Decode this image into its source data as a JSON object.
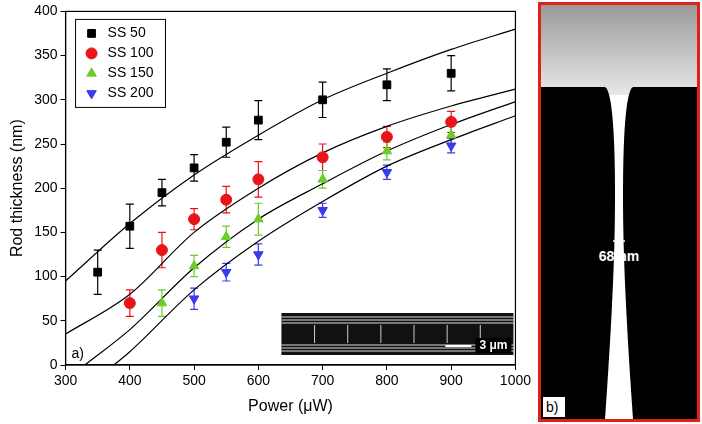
{
  "chart_data": {
    "type": "scatter",
    "x_label": "Power (μW)",
    "y_label": "Rod thickness (nm)",
    "xlim": [
      300,
      1000
    ],
    "xticks": [
      300,
      400,
      500,
      600,
      700,
      800,
      900,
      1000
    ],
    "ylim": [
      0,
      400
    ],
    "yticks": [
      0,
      50,
      100,
      150,
      200,
      250,
      300,
      350,
      400
    ],
    "grid": false,
    "legend": "upper left",
    "annotations": [
      "a)",
      "3 μm"
    ],
    "series": [
      {
        "name": "SS 50",
        "color": "#000000",
        "marker": "square",
        "x": [
          350,
          400,
          450,
          500,
          550,
          600,
          700,
          800,
          900
        ],
        "values": [
          105,
          157,
          195,
          223,
          252,
          277,
          300,
          317,
          330
        ],
        "errors": [
          25,
          25,
          15,
          15,
          17,
          22,
          20,
          18,
          20
        ],
        "fit": {
          "x": [
            300,
            400,
            500,
            600,
            700,
            800,
            900,
            1000
          ],
          "values": [
            95,
            160,
            215,
            260,
            300,
            330,
            357,
            380
          ]
        }
      },
      {
        "name": "SS 100",
        "color": "#e8141a",
        "marker": "circle",
        "x": [
          400,
          450,
          500,
          550,
          600,
          700,
          800,
          900
        ],
        "values": [
          70,
          130,
          165,
          187,
          210,
          235,
          258,
          275
        ],
        "errors": [
          15,
          20,
          12,
          15,
          20,
          15,
          12,
          12
        ],
        "fit": {
          "x": [
            300,
            400,
            500,
            600,
            700,
            800,
            900,
            1000
          ],
          "values": [
            35,
            80,
            150,
            200,
            240,
            270,
            293,
            312
          ]
        }
      },
      {
        "name": "SS 150",
        "color": "#6ccc2a",
        "marker": "triangle",
        "x": [
          450,
          500,
          550,
          600,
          700,
          800,
          900
        ],
        "values": [
          70,
          112,
          145,
          165,
          210,
          242,
          260
        ],
        "errors": [
          15,
          12,
          12,
          18,
          10,
          10,
          10
        ],
        "fit": {
          "x": [
            330,
            400,
            500,
            600,
            700,
            800,
            900,
            1000
          ],
          "values": [
            0,
            40,
            110,
            165,
            205,
            242,
            272,
            298
          ]
        }
      },
      {
        "name": "SS 200",
        "color": "#3a3aee",
        "marker": "triangle_down",
        "x": [
          500,
          550,
          600,
          700,
          800,
          900
        ],
        "values": [
          75,
          105,
          125,
          175,
          218,
          248
        ],
        "errors": [
          12,
          10,
          12,
          8,
          8,
          8
        ],
        "fit": {
          "x": [
            375,
            400,
            500,
            600,
            700,
            800,
            900,
            1000
          ],
          "values": [
            0,
            15,
            85,
            140,
            185,
            225,
            255,
            282
          ]
        }
      }
    ]
  },
  "image_panel": {
    "label": "b)",
    "annotation": "68 nm"
  }
}
